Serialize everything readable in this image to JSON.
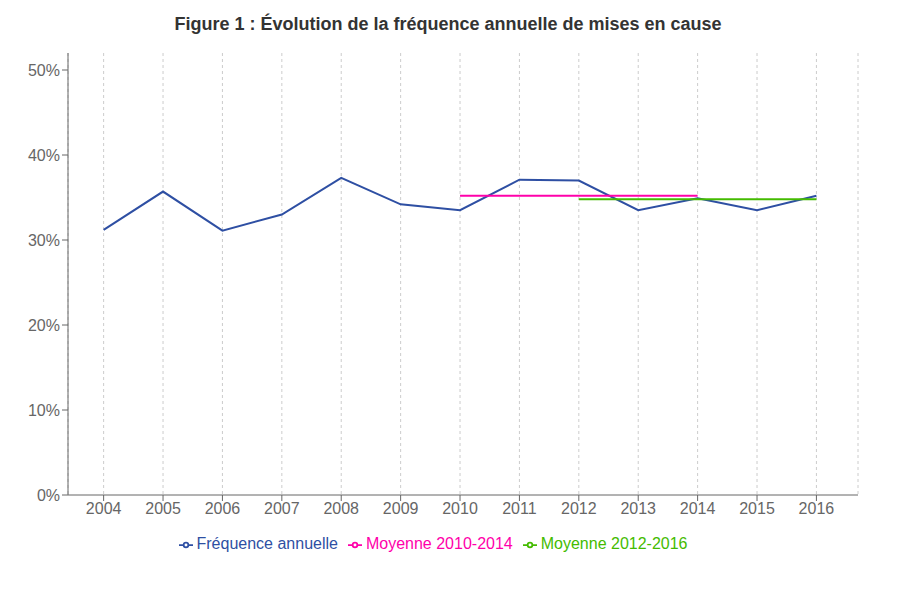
{
  "chart_data": {
    "type": "line",
    "title": "Figure 1 : Évolution de la fréquence annuelle de mises en cause",
    "xlim": [
      2003.4,
      2016.7
    ],
    "xticks": [
      2004,
      2005,
      2006,
      2007,
      2008,
      2009,
      2010,
      2011,
      2012,
      2013,
      2014,
      2015,
      2016
    ],
    "ylim": [
      0,
      52
    ],
    "yticks": [
      {
        "value": 0,
        "label": "0%"
      },
      {
        "value": 10,
        "label": "10%"
      },
      {
        "value": 20,
        "label": "20%"
      },
      {
        "value": 30,
        "label": "30%"
      },
      {
        "value": 40,
        "label": "40%"
      },
      {
        "value": 50,
        "label": "50%"
      }
    ],
    "grid": "x",
    "legend": "bottom",
    "series": [
      {
        "name": "Fréquence annuelle",
        "color": "#2e4fa3",
        "x": [
          2004,
          2005,
          2006,
          2007,
          2008,
          2009,
          2010,
          2011,
          2012,
          2013,
          2014,
          2015,
          2016
        ],
        "values": [
          31.2,
          35.7,
          31.1,
          33.0,
          37.3,
          34.2,
          33.5,
          37.1,
          37.0,
          33.5,
          34.9,
          33.5,
          35.2
        ]
      },
      {
        "name": "Moyenne 2010-2014",
        "color": "#ff00aa",
        "x": [
          2010,
          2014
        ],
        "values": [
          35.2,
          35.2
        ]
      },
      {
        "name": "Moyenne 2012-2016",
        "color": "#44bb00",
        "x": [
          2012,
          2016
        ],
        "values": [
          34.8,
          34.8
        ]
      }
    ]
  }
}
